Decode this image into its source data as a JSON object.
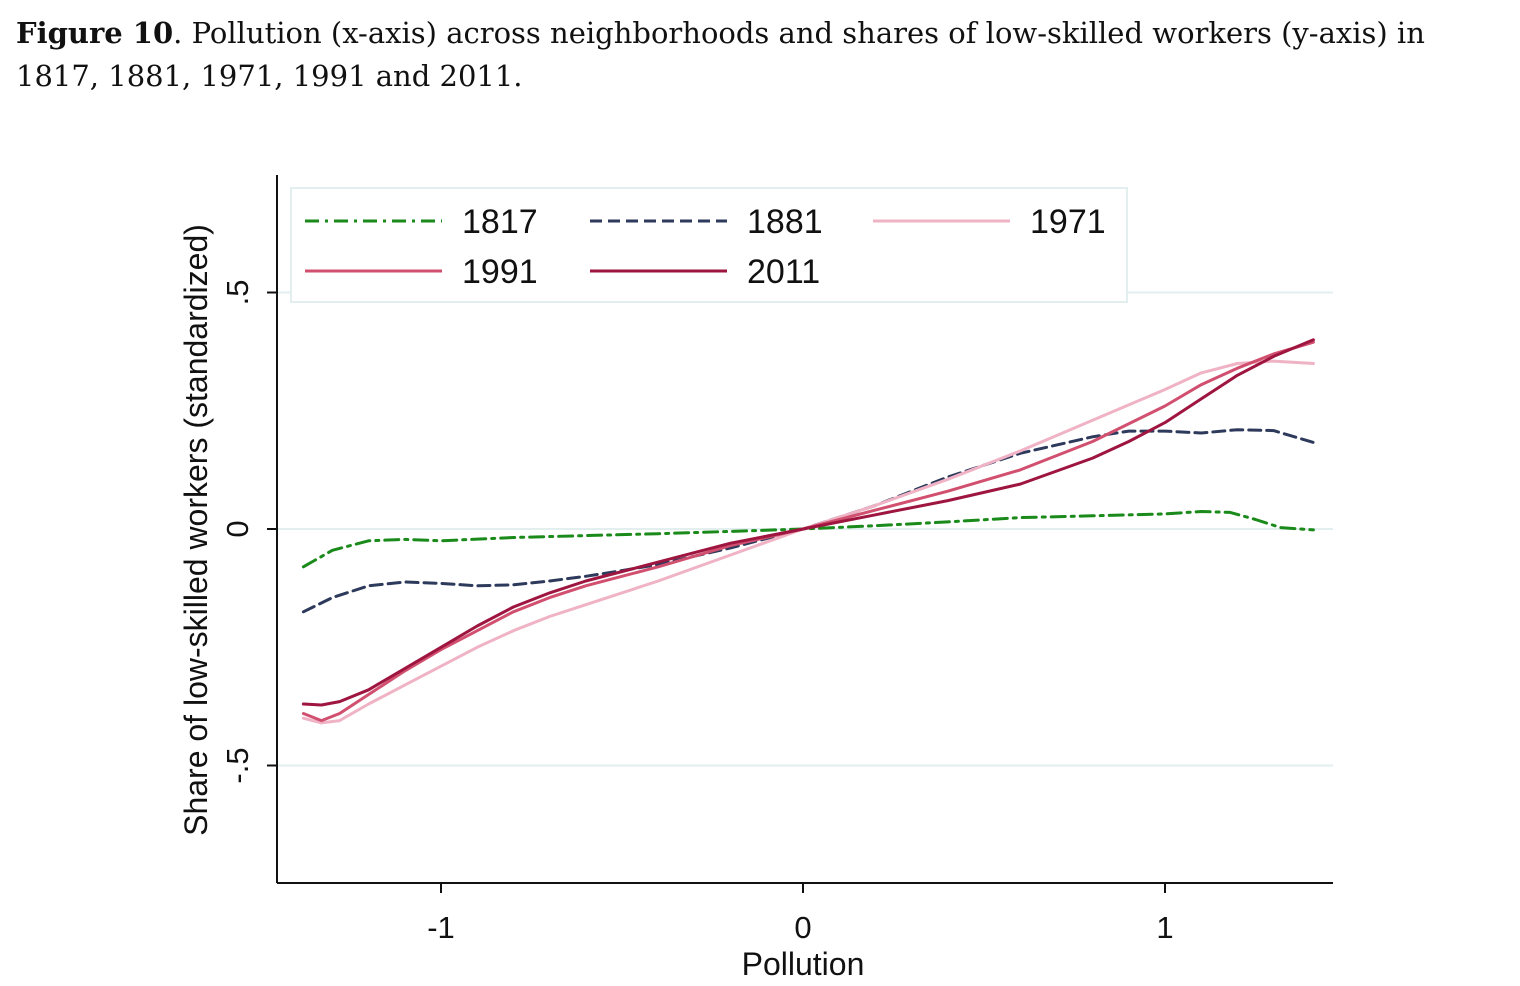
{
  "caption": {
    "label": "Figure 10",
    "text_line1": ". Pollution (x-axis) across neighborhoods and shares of low-skilled workers (y-axis) in",
    "text_line2": "1817, 1881, 1971, 1991 and 2011."
  },
  "chart_data": {
    "type": "line",
    "xlabel": "Pollution",
    "ylabel": "Share of low-skilled workers (standardized)",
    "xlim": [
      -1.45,
      1.47
    ],
    "ylim": [
      -0.75,
      0.75
    ],
    "xticks": [
      -1,
      0,
      1
    ],
    "xtick_labels": [
      "-1",
      "0",
      "1"
    ],
    "yticks": [
      -0.5,
      0,
      0.5
    ],
    "ytick_labels": [
      "-.5",
      "0",
      ".5"
    ],
    "grid": "horizontal",
    "legend_position": "top-left",
    "series": [
      {
        "name": "1817",
        "color": "#1a8a1a",
        "dash": "dashdot",
        "x": [
          -1.38,
          -1.3,
          -1.2,
          -1.1,
          -1.0,
          -0.8,
          -0.6,
          -0.4,
          -0.2,
          0.0,
          0.2,
          0.4,
          0.6,
          0.8,
          1.0,
          1.1,
          1.18,
          1.25,
          1.32,
          1.41
        ],
        "y": [
          -0.08,
          -0.045,
          -0.025,
          -0.022,
          -0.025,
          -0.018,
          -0.014,
          -0.01,
          -0.005,
          0.0,
          0.007,
          0.015,
          0.024,
          0.028,
          0.032,
          0.037,
          0.035,
          0.02,
          0.003,
          -0.002
        ]
      },
      {
        "name": "1881",
        "color": "#2e3a5c",
        "dash": "dash",
        "x": [
          -1.38,
          -1.3,
          -1.2,
          -1.1,
          -1.0,
          -0.9,
          -0.8,
          -0.7,
          -0.6,
          -0.5,
          -0.4,
          -0.2,
          0.0,
          0.2,
          0.4,
          0.6,
          0.8,
          0.9,
          1.0,
          1.1,
          1.2,
          1.3,
          1.41
        ],
        "y": [
          -0.175,
          -0.145,
          -0.12,
          -0.112,
          -0.115,
          -0.12,
          -0.118,
          -0.11,
          -0.1,
          -0.088,
          -0.075,
          -0.04,
          0.0,
          0.05,
          0.11,
          0.16,
          0.195,
          0.207,
          0.207,
          0.203,
          0.21,
          0.208,
          0.183
        ]
      },
      {
        "name": "1971",
        "color": "#efb3c5",
        "dash": "solid",
        "x": [
          -1.38,
          -1.33,
          -1.28,
          -1.2,
          -1.1,
          -1.0,
          -0.9,
          -0.8,
          -0.7,
          -0.6,
          -0.4,
          -0.2,
          0.0,
          0.2,
          0.4,
          0.6,
          0.8,
          1.0,
          1.1,
          1.2,
          1.3,
          1.41
        ],
        "y": [
          -0.4,
          -0.41,
          -0.405,
          -0.37,
          -0.33,
          -0.29,
          -0.25,
          -0.215,
          -0.185,
          -0.16,
          -0.11,
          -0.055,
          0.0,
          0.05,
          0.105,
          0.165,
          0.23,
          0.295,
          0.33,
          0.35,
          0.355,
          0.35
        ]
      },
      {
        "name": "1991",
        "color": "#d14f6f",
        "dash": "solid",
        "x": [
          -1.38,
          -1.33,
          -1.28,
          -1.2,
          -1.1,
          -1.0,
          -0.9,
          -0.8,
          -0.7,
          -0.6,
          -0.4,
          -0.2,
          0.0,
          0.2,
          0.4,
          0.6,
          0.8,
          1.0,
          1.1,
          1.2,
          1.3,
          1.41
        ],
        "y": [
          -0.39,
          -0.405,
          -0.39,
          -0.35,
          -0.3,
          -0.255,
          -0.215,
          -0.175,
          -0.145,
          -0.12,
          -0.08,
          -0.035,
          0.0,
          0.04,
          0.08,
          0.125,
          0.185,
          0.26,
          0.305,
          0.34,
          0.37,
          0.395
        ]
      },
      {
        "name": "2011",
        "color": "#9e1540",
        "dash": "solid",
        "x": [
          -1.38,
          -1.33,
          -1.28,
          -1.2,
          -1.1,
          -1.0,
          -0.9,
          -0.8,
          -0.7,
          -0.6,
          -0.4,
          -0.2,
          0.0,
          0.2,
          0.4,
          0.6,
          0.8,
          0.9,
          1.0,
          1.1,
          1.2,
          1.3,
          1.41
        ],
        "y": [
          -0.37,
          -0.372,
          -0.365,
          -0.34,
          -0.295,
          -0.25,
          -0.205,
          -0.165,
          -0.135,
          -0.11,
          -0.07,
          -0.03,
          0.0,
          0.03,
          0.06,
          0.095,
          0.15,
          0.185,
          0.225,
          0.275,
          0.325,
          0.365,
          0.4
        ]
      }
    ]
  }
}
